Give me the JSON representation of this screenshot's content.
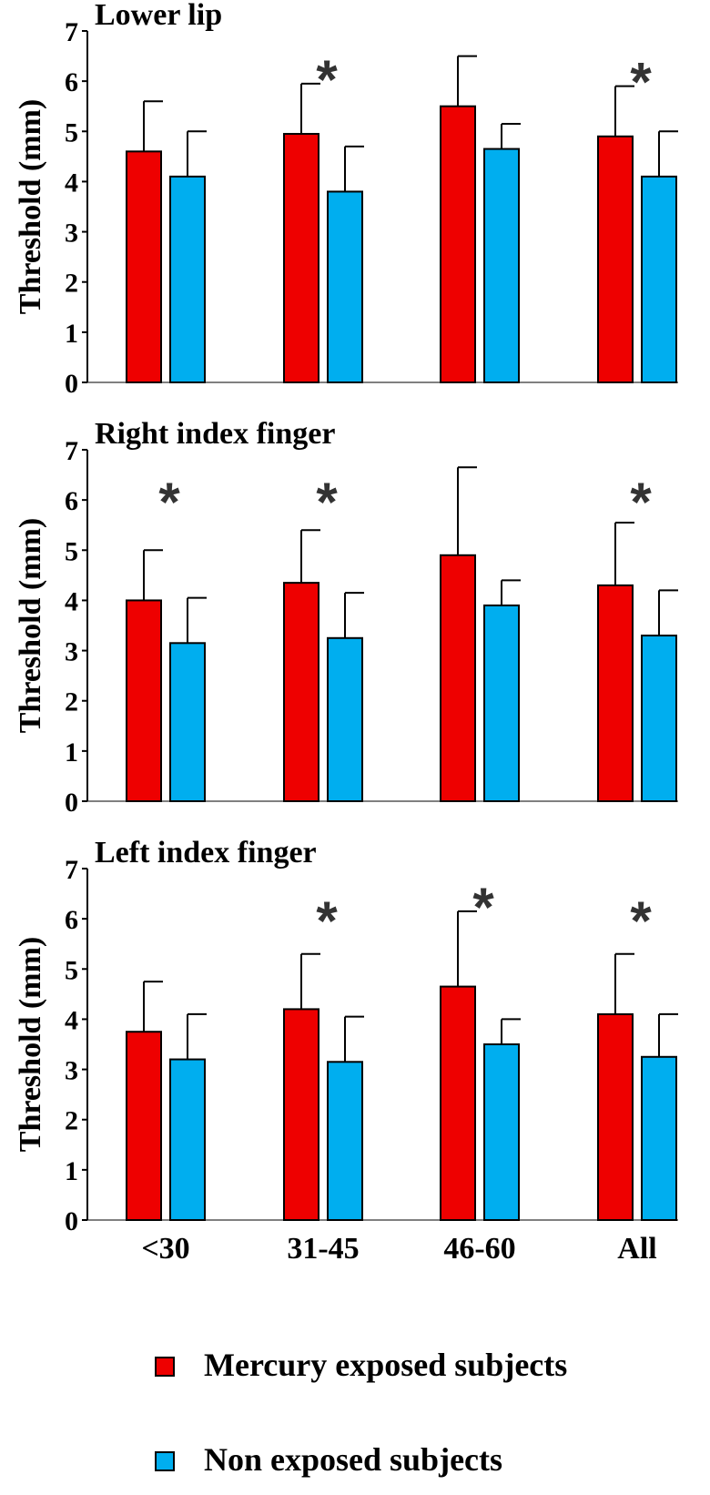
{
  "colors": {
    "exposed": "#ee0000",
    "nonexposed": "#00aeef",
    "axis": "#000000",
    "star": "#333333"
  },
  "legend": {
    "exposed_label": "Mercury exposed subjects",
    "nonexposed_label": "Non exposed subjects"
  },
  "chart_data": [
    {
      "type": "bar",
      "title": "Lower lip",
      "ylabel": "Threshold (mm)",
      "ylim": [
        0,
        7
      ],
      "yticks": [
        "0",
        "1",
        "2",
        "3",
        "4",
        "5",
        "6",
        "7"
      ],
      "categories": [
        "<30",
        "31-45",
        "46-60",
        "All"
      ],
      "series": [
        {
          "name": "Mercury exposed subjects",
          "values": [
            4.6,
            4.95,
            5.5,
            4.9
          ],
          "error": [
            1.0,
            1.0,
            1.0,
            1.0
          ]
        },
        {
          "name": "Non exposed subjects",
          "values": [
            4.1,
            3.8,
            4.65,
            4.1
          ],
          "error": [
            0.9,
            0.9,
            0.5,
            0.9
          ]
        }
      ],
      "significant": [
        false,
        true,
        false,
        true
      ],
      "annotation_symbol": "*"
    },
    {
      "type": "bar",
      "title": "Right index finger",
      "ylabel": "Threshold (mm)",
      "ylim": [
        0,
        7
      ],
      "yticks": [
        "0",
        "1",
        "2",
        "3",
        "4",
        "5",
        "6",
        "7"
      ],
      "categories": [
        "<30",
        "31-45",
        "46-60",
        "All"
      ],
      "series": [
        {
          "name": "Mercury exposed subjects",
          "values": [
            4.0,
            4.35,
            4.9,
            4.3
          ],
          "error": [
            1.0,
            1.05,
            1.75,
            1.25
          ]
        },
        {
          "name": "Non exposed subjects",
          "values": [
            3.15,
            3.25,
            3.9,
            3.3
          ],
          "error": [
            0.9,
            0.9,
            0.5,
            0.9
          ]
        }
      ],
      "significant": [
        true,
        true,
        false,
        true
      ],
      "annotation_symbol": "*"
    },
    {
      "type": "bar",
      "title": "Left index finger",
      "ylabel": "Threshold (mm)",
      "ylim": [
        0,
        7
      ],
      "yticks": [
        "0",
        "1",
        "2",
        "3",
        "4",
        "5",
        "6",
        "7"
      ],
      "categories": [
        "<30",
        "31-45",
        "46-60",
        "All"
      ],
      "series": [
        {
          "name": "Mercury exposed subjects",
          "values": [
            3.75,
            4.2,
            4.65,
            4.1
          ],
          "error": [
            1.0,
            1.1,
            1.5,
            1.2
          ]
        },
        {
          "name": "Non exposed subjects",
          "values": [
            3.2,
            3.15,
            3.5,
            3.25
          ],
          "error": [
            0.9,
            0.9,
            0.5,
            0.85
          ]
        }
      ],
      "significant": [
        false,
        true,
        true,
        true
      ],
      "annotation_symbol": "*"
    }
  ]
}
